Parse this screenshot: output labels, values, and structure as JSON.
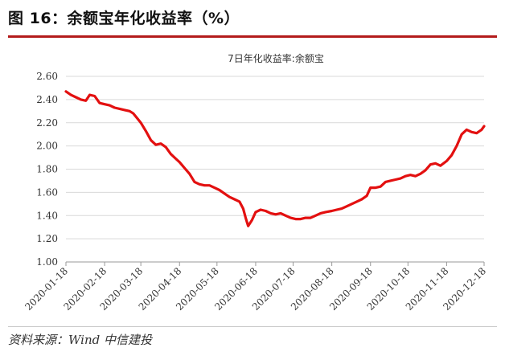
{
  "figure": {
    "title": "图 16：余额宝年化收益率（%）",
    "source": "资料来源：Wind 中信建投"
  },
  "colors": {
    "line": "#e31010",
    "accent_rule": "#b31b1b",
    "grid": "#d9d9d9"
  },
  "chart_data": {
    "type": "line",
    "title": "7日年化收益率:余额宝",
    "xlabel": "",
    "ylabel": "",
    "ylim": [
      1.0,
      2.6
    ],
    "yticks": [
      "1.00",
      "1.20",
      "1.40",
      "1.60",
      "1.80",
      "2.00",
      "2.20",
      "2.40",
      "2.60"
    ],
    "xticks": [
      "2020-01-18",
      "2020-02-18",
      "2020-03-18",
      "2020-04-18",
      "2020-05-18",
      "2020-06-18",
      "2020-07-18",
      "2020-08-18",
      "2020-09-18",
      "2020-10-18",
      "2020-11-18",
      "2020-12-18"
    ],
    "grid": "horizontal",
    "series": [
      {
        "x": [
          "2020-01-18",
          "2020-01-22",
          "2020-01-26",
          "2020-01-30",
          "2020-02-03",
          "2020-02-06",
          "2020-02-10",
          "2020-02-14",
          "2020-02-18",
          "2020-02-22",
          "2020-02-26",
          "2020-03-01",
          "2020-03-05",
          "2020-03-09",
          "2020-03-12",
          "2020-03-15",
          "2020-03-18",
          "2020-03-22",
          "2020-03-26",
          "2020-03-30",
          "2020-04-03",
          "2020-04-07",
          "2020-04-11",
          "2020-04-15",
          "2020-04-18",
          "2020-04-22",
          "2020-04-26",
          "2020-04-30",
          "2020-05-04",
          "2020-05-08",
          "2020-05-12",
          "2020-05-16",
          "2020-05-20",
          "2020-05-24",
          "2020-05-28",
          "2020-06-01",
          "2020-06-05",
          "2020-06-08",
          "2020-06-10",
          "2020-06-12",
          "2020-06-15",
          "2020-06-18",
          "2020-06-22",
          "2020-06-26",
          "2020-06-30",
          "2020-07-04",
          "2020-07-08",
          "2020-07-12",
          "2020-07-16",
          "2020-07-20",
          "2020-07-24",
          "2020-07-28",
          "2020-08-01",
          "2020-08-05",
          "2020-08-09",
          "2020-08-13",
          "2020-08-18",
          "2020-08-22",
          "2020-08-26",
          "2020-08-30",
          "2020-09-03",
          "2020-09-07",
          "2020-09-11",
          "2020-09-15",
          "2020-09-18",
          "2020-09-22",
          "2020-09-26",
          "2020-09-30",
          "2020-10-04",
          "2020-10-08",
          "2020-10-12",
          "2020-10-16",
          "2020-10-20",
          "2020-10-24",
          "2020-10-28",
          "2020-11-01",
          "2020-11-05",
          "2020-11-09",
          "2020-11-13",
          "2020-11-18",
          "2020-11-22",
          "2020-11-26",
          "2020-11-30",
          "2020-12-04",
          "2020-12-08",
          "2020-12-12",
          "2020-12-16",
          "2020-12-18"
        ],
        "values": [
          2.47,
          2.44,
          2.42,
          2.4,
          2.39,
          2.44,
          2.43,
          2.37,
          2.36,
          2.35,
          2.33,
          2.32,
          2.31,
          2.3,
          2.28,
          2.24,
          2.2,
          2.13,
          2.05,
          2.01,
          2.02,
          1.99,
          1.93,
          1.89,
          1.86,
          1.81,
          1.76,
          1.69,
          1.67,
          1.66,
          1.66,
          1.64,
          1.62,
          1.59,
          1.56,
          1.54,
          1.52,
          1.46,
          1.38,
          1.31,
          1.36,
          1.43,
          1.45,
          1.44,
          1.42,
          1.41,
          1.42,
          1.4,
          1.38,
          1.37,
          1.37,
          1.38,
          1.38,
          1.4,
          1.42,
          1.43,
          1.44,
          1.45,
          1.46,
          1.48,
          1.5,
          1.52,
          1.54,
          1.57,
          1.64,
          1.64,
          1.65,
          1.69,
          1.7,
          1.71,
          1.72,
          1.74,
          1.75,
          1.74,
          1.76,
          1.79,
          1.84,
          1.85,
          1.83,
          1.87,
          1.92,
          2.0,
          2.1,
          2.14,
          2.12,
          2.11,
          2.14,
          2.17
        ]
      }
    ]
  }
}
